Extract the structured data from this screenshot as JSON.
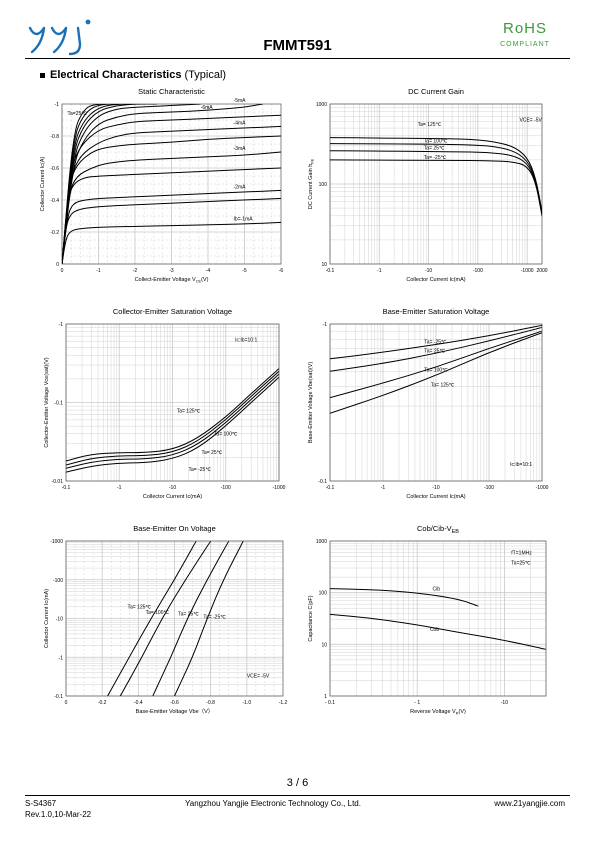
{
  "header": {
    "rohs": "RoHS",
    "compliant": "COMPLIANT",
    "part_number": "FMMT591",
    "logo_icon": "yangjie-logo-icon",
    "brand_color": "#1a6fb5",
    "rohs_color": "#3a9a3a"
  },
  "section": {
    "bullet": "■",
    "title_bold": "Electrical Characteristics",
    "title_rest": "(Typical)"
  },
  "footer": {
    "page": "3 / 6",
    "doc_id": "S-S4367",
    "rev": "Rev.1.0,10-Mar-22",
    "company": "Yangzhou Yangjie Electronic Technology Co., Ltd.",
    "website": "www.21yangjie.com"
  },
  "chart_data": [
    {
      "type": "line",
      "title": "Static Characteristic",
      "xlabel": "Collect-Emitter Voltage",
      "xlabel_sym": "V",
      "xlabel_sub": "CE",
      "xlabel_unit": "(V)",
      "ylabel": "Collector Current   Ic(A)",
      "xscale": "linear",
      "yscale": "linear",
      "xlim": [
        0,
        -6
      ],
      "ylim": [
        0,
        -1
      ],
      "xticks": [
        0,
        -1,
        -2,
        -3,
        -4,
        -5,
        -6
      ],
      "xticklabels": [
        "0",
        "-1",
        "-2",
        "-3",
        "-4",
        "-5",
        "-6"
      ],
      "yticks": [
        0,
        -0.2,
        -0.4,
        -0.6,
        -0.8,
        -1
      ],
      "yticklabels": [
        "0",
        "-0.2",
        "-0.4",
        "-0.6",
        "-0.8",
        "-1"
      ],
      "annotations": [
        {
          "text": "Ta=25℃",
          "x": -0.15,
          "y": -0.93
        }
      ],
      "series": [
        {
          "name": "Ib=-1mA",
          "x": [
            0,
            -0.1,
            -0.2,
            -0.4,
            -1,
            -2,
            -3,
            -4,
            -5,
            -6
          ],
          "y": [
            0,
            -0.15,
            -0.2,
            -0.22,
            -0.23,
            -0.235,
            -0.24,
            -0.245,
            -0.25,
            -0.26
          ]
        },
        {
          "name": "",
          "x": [
            0,
            -0.1,
            -0.2,
            -0.4,
            -1,
            -2,
            -3,
            -4,
            -5,
            -6
          ],
          "y": [
            0,
            -0.22,
            -0.3,
            -0.34,
            -0.36,
            -0.37,
            -0.38,
            -0.39,
            -0.4,
            -0.41
          ]
        },
        {
          "name": "-2mA",
          "x": [
            0,
            -0.15,
            -0.3,
            -0.6,
            -1,
            -2,
            -3,
            -4,
            -5,
            -6
          ],
          "y": [
            0,
            -0.3,
            -0.38,
            -0.4,
            -0.41,
            -0.42,
            -0.43,
            -0.44,
            -0.45,
            -0.46
          ]
        },
        {
          "name": "",
          "x": [
            0,
            -0.15,
            -0.3,
            -0.6,
            -1,
            -2,
            -3,
            -4,
            -5,
            -6
          ],
          "y": [
            0,
            -0.4,
            -0.5,
            -0.54,
            -0.55,
            -0.56,
            -0.57,
            -0.58,
            -0.59,
            -0.6
          ]
        },
        {
          "name": "-3mA",
          "x": [
            0,
            -0.2,
            -0.4,
            -0.8,
            -1.2,
            -2,
            -3,
            -4,
            -5,
            -6
          ],
          "y": [
            0,
            -0.45,
            -0.55,
            -0.6,
            -0.63,
            -0.65,
            -0.66,
            -0.67,
            -0.68,
            -0.7
          ]
        },
        {
          "name": "",
          "x": [
            0,
            -0.2,
            -0.4,
            -0.8,
            -1.2,
            -2,
            -3,
            -4,
            -5,
            -6
          ],
          "y": [
            0,
            -0.5,
            -0.62,
            -0.7,
            -0.73,
            -0.75,
            -0.76,
            -0.78,
            -0.79,
            -0.8
          ]
        },
        {
          "name": "-4mA",
          "x": [
            0,
            -0.25,
            -0.5,
            -1,
            -1.5,
            -2,
            -3,
            -4,
            -5,
            -6
          ],
          "y": [
            0,
            -0.55,
            -0.68,
            -0.76,
            -0.8,
            -0.82,
            -0.83,
            -0.84,
            -0.85,
            -0.86
          ]
        },
        {
          "name": "",
          "x": [
            0,
            -0.25,
            -0.5,
            -1,
            -1.5,
            -2,
            -3,
            -4,
            -5,
            -6
          ],
          "y": [
            0,
            -0.6,
            -0.74,
            -0.84,
            -0.87,
            -0.89,
            -0.9,
            -0.91,
            -0.92,
            -0.93
          ]
        },
        {
          "name": "-5mA",
          "x": [
            0,
            -0.3,
            -0.6,
            -1,
            -1.5,
            -2,
            -3,
            -4,
            -5,
            -5.5
          ],
          "y": [
            0,
            -0.62,
            -0.78,
            -0.88,
            -0.92,
            -0.94,
            -0.95,
            -0.96,
            -0.98,
            -1
          ]
        },
        {
          "name": "",
          "x": [
            0,
            -0.3,
            -0.6,
            -1,
            -1.5,
            -2,
            -3,
            -3.8
          ],
          "y": [
            0,
            -0.66,
            -0.83,
            -0.93,
            -0.97,
            -0.98,
            -0.99,
            -1
          ]
        },
        {
          "name": "-6mA",
          "x": [
            0,
            -0.3,
            -0.6,
            -1,
            -1.5,
            -2,
            -2.6
          ],
          "y": [
            0,
            -0.7,
            -0.87,
            -0.96,
            -0.99,
            -1,
            -1
          ]
        },
        {
          "name": "",
          "x": [
            0,
            -0.3,
            -0.6,
            -1,
            -1.5,
            -2.2
          ],
          "y": [
            0,
            -0.74,
            -0.9,
            -0.98,
            -1,
            -1
          ]
        },
        {
          "name": "",
          "x": [
            0,
            -0.3,
            -0.6,
            -1,
            -1.8
          ],
          "y": [
            0,
            -0.78,
            -0.94,
            -1,
            -1
          ]
        },
        {
          "name": "",
          "x": [
            0,
            -0.3,
            -0.6,
            -0.9,
            -1.5
          ],
          "y": [
            0,
            -0.82,
            -0.97,
            -1,
            -1
          ]
        }
      ]
    },
    {
      "type": "line",
      "title": "DC Current Gain",
      "xlabel": "Collector Current   Ic(mA)",
      "ylabel": "DC Current Gain",
      "ylabel_sym": "h",
      "ylabel_sub": "FE",
      "xscale": "log",
      "yscale": "log",
      "xlim": [
        0.1,
        2000
      ],
      "ylim": [
        10,
        1000
      ],
      "xticks": [
        0.1,
        1,
        10,
        100,
        1000,
        2000
      ],
      "xticklabels": [
        "-0.1",
        "-1",
        "-10",
        "-100",
        "-1000",
        "2000"
      ],
      "yticks": [
        10,
        100,
        1000
      ],
      "yticklabels": [
        "10",
        "100",
        "1000"
      ],
      "annotations": [
        {
          "text": "VCE= -5V",
          "x": 700,
          "y": 600
        },
        {
          "text": "Ta= 125℃",
          "x": 6,
          "y": 530
        },
        {
          "text": "Ta= 100℃",
          "x": 8,
          "y": 330
        },
        {
          "text": "Ta= 25℃",
          "x": 8,
          "y": 270
        },
        {
          "text": "Ta= -25℃",
          "x": 8,
          "y": 205
        }
      ],
      "series": [
        {
          "name": "Ta= 125℃",
          "x": [
            0.1,
            1,
            10,
            50,
            100,
            200,
            500,
            1000,
            1500,
            2000
          ],
          "y": [
            380,
            375,
            370,
            365,
            355,
            340,
            300,
            220,
            120,
            45
          ]
        },
        {
          "name": "Ta= 100℃",
          "x": [
            0.1,
            1,
            10,
            50,
            100,
            200,
            500,
            1000,
            1500,
            2000
          ],
          "y": [
            320,
            318,
            315,
            310,
            305,
            295,
            265,
            200,
            115,
            44
          ]
        },
        {
          "name": "Ta= 25℃",
          "x": [
            0.1,
            1,
            10,
            50,
            100,
            200,
            500,
            1000,
            1500,
            2000
          ],
          "y": [
            260,
            258,
            255,
            252,
            250,
            245,
            230,
            185,
            110,
            42
          ]
        },
        {
          "name": "Ta= -25℃",
          "x": [
            0.1,
            1,
            10,
            50,
            100,
            200,
            500,
            1000,
            1500,
            2000
          ],
          "y": [
            200,
            199,
            198,
            197,
            196,
            195,
            190,
            170,
            105,
            40
          ]
        }
      ]
    },
    {
      "type": "line",
      "title": "Collector-Emitter Saturation Voltage",
      "xlabel": "Collector Current   Ic(mA)",
      "ylabel": "Collector-Emitter Voltage   Vce(sat)(V)",
      "xscale": "log",
      "yscale": "log",
      "xlim": [
        0.1,
        1000
      ],
      "ylim": [
        0.01,
        1
      ],
      "xticks": [
        0.1,
        1,
        10,
        100,
        1000
      ],
      "xticklabels": [
        "-0.1",
        "-1",
        "-10",
        "-100",
        "-1000"
      ],
      "yticks": [
        0.01,
        0.1,
        1
      ],
      "yticklabels": [
        "-0.01",
        "-0.1",
        "-1"
      ],
      "annotations": [
        {
          "text": "Ic:Ib=10:1",
          "x": 150,
          "y": 0.6
        },
        {
          "text": "Ta= 125℃",
          "x": 12,
          "y": 0.075
        },
        {
          "text": "Ta= 100℃",
          "x": 60,
          "y": 0.038
        },
        {
          "text": "Ta= 25℃",
          "x": 35,
          "y": 0.022
        },
        {
          "text": "Ta= -25℃",
          "x": 20,
          "y": 0.0135
        }
      ],
      "series": [
        {
          "name": "Ta= 125℃",
          "x": [
            0.1,
            0.3,
            1,
            3,
            10,
            30,
            100,
            300,
            1000
          ],
          "y": [
            0.018,
            0.022,
            0.023,
            0.023,
            0.025,
            0.035,
            0.065,
            0.13,
            0.27
          ]
        },
        {
          "name": "Ta= 100℃",
          "x": [
            0.1,
            0.3,
            1,
            3,
            10,
            30,
            100,
            300,
            1000
          ],
          "y": [
            0.016,
            0.0195,
            0.021,
            0.021,
            0.023,
            0.032,
            0.06,
            0.12,
            0.25
          ]
        },
        {
          "name": "Ta= 25℃",
          "x": [
            0.1,
            0.3,
            1,
            3,
            10,
            30,
            100,
            300,
            1000
          ],
          "y": [
            0.0145,
            0.0175,
            0.019,
            0.019,
            0.021,
            0.029,
            0.055,
            0.11,
            0.23
          ]
        },
        {
          "name": "Ta= -25℃",
          "x": [
            0.1,
            0.3,
            1,
            3,
            10,
            30,
            100,
            300,
            1000
          ],
          "y": [
            0.013,
            0.0155,
            0.017,
            0.017,
            0.019,
            0.026,
            0.05,
            0.1,
            0.21
          ]
        }
      ]
    },
    {
      "type": "line",
      "title": "Base-Emitter Saturation Voltage",
      "xlabel": "Collector Current   Ic(mA)",
      "ylabel": "Base-Emitter Voltage   Vbe(sat)(V)",
      "xscale": "log",
      "yscale": "log",
      "xlim": [
        0.1,
        1000
      ],
      "ylim": [
        0.1,
        1
      ],
      "xticks": [
        0.1,
        1,
        10,
        100,
        1000
      ],
      "xticklabels": [
        "-0.1",
        "-1",
        "-10",
        "-100",
        "-1000"
      ],
      "yticks": [
        0.1,
        1
      ],
      "yticklabels": [
        "-0.1",
        "-1"
      ],
      "annotations": [
        {
          "text": "Ic:Ib=10:1",
          "x": 250,
          "y": 0.125
        },
        {
          "text": "Ta= -25℃",
          "x": 6,
          "y": 0.75
        },
        {
          "text": "Ta= 25℃",
          "x": 6,
          "y": 0.66
        },
        {
          "text": "Ta= 100℃",
          "x": 6,
          "y": 0.5
        },
        {
          "text": "Ta= 125℃",
          "x": 8,
          "y": 0.4
        }
      ],
      "series": [
        {
          "name": "Ta= -25℃",
          "x": [
            0.1,
            1,
            10,
            100,
            1000
          ],
          "y": [
            0.6,
            0.66,
            0.74,
            0.84,
            0.98
          ]
        },
        {
          "name": "Ta= 25℃",
          "x": [
            0.1,
            1,
            10,
            100,
            1000
          ],
          "y": [
            0.5,
            0.56,
            0.65,
            0.78,
            0.95
          ]
        },
        {
          "name": "Ta= 100℃",
          "x": [
            0.1,
            1,
            10,
            100,
            1000
          ],
          "y": [
            0.34,
            0.42,
            0.53,
            0.7,
            0.9
          ]
        },
        {
          "name": "Ta= 125℃",
          "x": [
            0.1,
            1,
            10,
            100,
            1000
          ],
          "y": [
            0.27,
            0.35,
            0.47,
            0.66,
            0.88
          ]
        }
      ]
    },
    {
      "type": "line",
      "title": "Base-Emitter On Voltage",
      "xlabel": "Base-Emitter Voltage   Vbe（V）",
      "ylabel": "Collector Current   Ic(mA)",
      "xscale": "linear",
      "yscale": "log",
      "xlim": [
        0,
        -1.2
      ],
      "ylim": [
        0.1,
        1000
      ],
      "xticks": [
        0,
        -0.2,
        -0.4,
        -0.6,
        -0.8,
        -1.0,
        -1.2
      ],
      "xticklabels": [
        "0",
        "-0.2",
        "-0.4",
        "-0.6",
        "-0.8",
        "-1.0",
        "-1.2"
      ],
      "yticks": [
        0.1,
        1,
        10,
        100,
        1000
      ],
      "yticklabels": [
        "-0.1",
        "-1",
        "-10",
        "-100",
        "-1000"
      ],
      "annotations": [
        {
          "text": "VCE= -5V",
          "x": -1.0,
          "y": 0.3
        },
        {
          "text": "Ta= 125℃",
          "x": -0.34,
          "y": 18
        },
        {
          "text": "Ta= 100℃",
          "x": -0.44,
          "y": 13
        },
        {
          "text": "Ta= 25℃",
          "x": -0.62,
          "y": 12
        },
        {
          "text": "Ta= -25℃",
          "x": -0.76,
          "y": 10
        }
      ],
      "series": [
        {
          "name": "Ta= 125℃",
          "x": [
            -0.23,
            -0.35,
            -0.47,
            -0.6,
            -0.72
          ],
          "y": [
            0.1,
            1,
            10,
            100,
            1000
          ]
        },
        {
          "name": "Ta= 100℃",
          "x": [
            -0.3,
            -0.42,
            -0.53,
            -0.66,
            -0.8
          ],
          "y": [
            0.1,
            1,
            10,
            100,
            1000
          ]
        },
        {
          "name": "Ta= 25℃",
          "x": [
            -0.48,
            -0.58,
            -0.67,
            -0.78,
            -0.9
          ],
          "y": [
            0.1,
            1,
            10,
            100,
            1000
          ]
        },
        {
          "name": "Ta= -25℃",
          "x": [
            -0.6,
            -0.7,
            -0.78,
            -0.87,
            -0.98
          ],
          "y": [
            0.1,
            1,
            10,
            100,
            1000
          ]
        }
      ]
    },
    {
      "type": "line",
      "title": "Cob/Cib-V",
      "title_sub": "EB",
      "xlabel": "Reverse Voltage",
      "xlabel_sym": "V",
      "xlabel_sub": "R",
      "xlabel_unit": "(V)",
      "ylabel": "Capacitance   C(pF)",
      "xscale": "log",
      "yscale": "log",
      "xlim": [
        0.1,
        30
      ],
      "ylim": [
        1,
        1000
      ],
      "xticks": [
        0.1,
        1,
        10
      ],
      "xticklabels": [
        "- 0.1",
        "- 1",
        "-10"
      ],
      "yticks": [
        1,
        10,
        100,
        1000
      ],
      "yticklabels": [
        "1",
        "10",
        "100",
        "1000"
      ],
      "annotations": [
        {
          "text": "fT=1MHz",
          "x": 12,
          "y": 550
        },
        {
          "text": "Ta=25℃",
          "x": 12,
          "y": 350
        },
        {
          "text": "Cib",
          "x": 1.5,
          "y": 110
        },
        {
          "text": "Cob",
          "x": 1.4,
          "y": 18
        }
      ],
      "series": [
        {
          "name": "Cib",
          "x": [
            0.1,
            0.3,
            1,
            3,
            5
          ],
          "y": [
            120,
            115,
            100,
            75,
            55
          ]
        },
        {
          "name": "Cob",
          "x": [
            0.1,
            0.3,
            1,
            3,
            10,
            30
          ],
          "y": [
            38,
            32,
            24,
            17,
            12,
            8
          ]
        }
      ]
    }
  ]
}
